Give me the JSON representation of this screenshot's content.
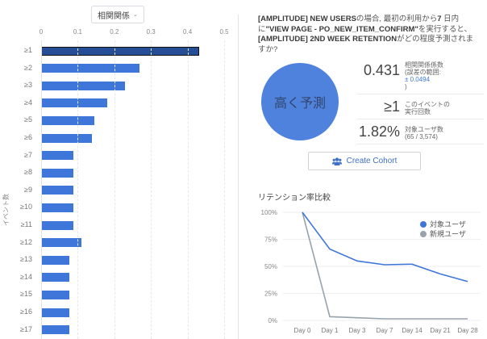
{
  "left_panel": {
    "metric_selector": {
      "label": "相関関係",
      "icon": "chevron-down-icon"
    },
    "y_axis_title": "イベント数"
  },
  "right_panel": {
    "question": {
      "part1_bold": "[AMPLITUDE] NEW USERS",
      "part2": "の場合, 最初の利用から",
      "part3_bold": "7",
      "part4": " 日内に",
      "part5_bold": "\"VIEW PAGE - PO_NEW_ITEM_CONFIRM\"",
      "part6": "を実行すると、",
      "part7_bold": "[AMPLITUDE] 2ND WEEK RETENTION",
      "part8": "がどの程度予測されますか?"
    },
    "prediction_label": "高く予測",
    "stats": [
      {
        "value": "0.431",
        "label_line1": "相関関係係数",
        "label_line2": "(誤差の範囲:",
        "label_line3": "± 0.0494",
        "label_line4": ")"
      },
      {
        "value": "≥1",
        "label_line1": "このイベントの",
        "label_line2": "実行回数"
      },
      {
        "value": "1.82%",
        "label_line1": "対象ユーザ数",
        "label_line2": "(65 / 3,574)"
      }
    ],
    "create_cohort_button": {
      "label": "Create Cohort",
      "icon": "users-icon"
    },
    "retention_title": "リテンション率比較",
    "legend": [
      {
        "label": "対象ユーザ",
        "color": "#3f76d9"
      },
      {
        "label": "新規ユーザ",
        "color": "#98a2ad"
      }
    ]
  },
  "chart_data": [
    {
      "type": "bar",
      "orientation": "horizontal",
      "title": "相関関係",
      "xlabel": "",
      "ylabel": "イベント数",
      "xlim": [
        0,
        0.5
      ],
      "xticks": [
        "0",
        "0.1",
        "0.2",
        "0.3",
        "0.4",
        "0.5"
      ],
      "categories": [
        "≥1",
        "≥2",
        "≥3",
        "≥4",
        "≥5",
        "≥6",
        "≥7",
        "≥8",
        "≥9",
        "≥10",
        "≥11",
        "≥12",
        "≥13",
        "≥14",
        "≥15",
        "≥16",
        "≥17"
      ],
      "values": [
        0.431,
        0.268,
        0.229,
        0.18,
        0.145,
        0.139,
        0.088,
        0.088,
        0.088,
        0.088,
        0.088,
        0.11,
        0.077,
        0.077,
        0.077,
        0.077,
        0.077
      ],
      "selected_index": 0,
      "colors": {
        "bar": "#3f76d9",
        "selected": "#264e96"
      },
      "grid": true
    },
    {
      "type": "line",
      "title": "リテンション率比較",
      "x": [
        "Day 0",
        "Day 1",
        "Day 3",
        "Day 7",
        "Day 14",
        "Day 21",
        "Day 28"
      ],
      "yticks": [
        "0%",
        "25%",
        "50%",
        "75%",
        "100%"
      ],
      "ylim": [
        0,
        100
      ],
      "series": [
        {
          "name": "対象ユーザ",
          "color": "#3f76d9",
          "values": [
            100,
            66,
            55,
            51.5,
            52,
            43,
            36
          ]
        },
        {
          "name": "新規ユーザ",
          "color": "#98a2ad",
          "values": [
            100,
            3.5,
            2.5,
            1.5,
            1.5,
            1.5,
            1.5
          ]
        }
      ],
      "legend_position": "top-right",
      "grid": true
    }
  ]
}
